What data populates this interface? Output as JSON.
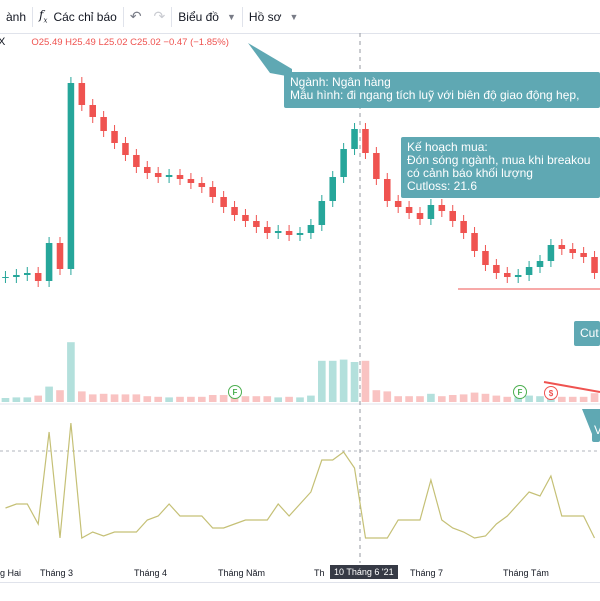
{
  "toolbar": {
    "nganh_label": "ành",
    "indicators_label": "Các chỉ báo",
    "chart_label": "Biểu đồ",
    "profile_label": "Hồ sơ"
  },
  "legend": {
    "close_glyph": "X",
    "open": "O25.49",
    "high": "H25.49",
    "low": "L25.02",
    "close": "C25.02",
    "change": "−0.47 (−1.85%)"
  },
  "callouts": {
    "sector_line1": "Ngành: Ngân hàng",
    "sector_line2": "Mẫu hình: đi ngang tích luỹ với biên độ giao động hẹp,",
    "plan_line1": "Kế hoạch mua:",
    "plan_line2": "Đón sóng ngành, mua khi breakou",
    "plan_line3": "có cảnh báo khối lượng",
    "plan_line4": "Cutloss: 21.6",
    "cut_label": "Cut",
    "v_label": "V"
  },
  "xaxis": {
    "labels": [
      "g Hai",
      "Tháng 3",
      "Tháng 4",
      "Tháng Năm",
      "Th",
      "Tháng 7",
      "Tháng Tám"
    ],
    "crosshair": "10 Tháng 6 '21"
  },
  "flags": [
    "F",
    "F",
    "$"
  ],
  "colors": {
    "up": "#26a69a",
    "down": "#ef5350",
    "osc": "#c5c076",
    "callout": "#5fa8b3"
  },
  "icons": [
    "fx-icon",
    "undo-icon",
    "redo-icon",
    "chevron-down-icon",
    "close-icon"
  ],
  "chart_data": {
    "type": "candlestick",
    "close_values_approx": [
      24.8,
      24.9,
      25.0,
      24.6,
      26.5,
      25.2,
      34.5,
      33.4,
      32.8,
      32.1,
      31.5,
      30.9,
      30.3,
      30.0,
      29.8,
      29.9,
      29.7,
      29.5,
      29.3,
      28.8,
      28.3,
      27.9,
      27.6,
      27.3,
      27.0,
      27.1,
      26.9,
      27.0,
      27.4,
      28.6,
      29.8,
      31.2,
      32.2,
      31.0,
      29.7,
      28.6,
      28.3,
      28.0,
      27.7,
      28.4,
      28.1,
      27.6,
      27.0,
      26.1,
      25.4,
      25.0,
      24.8,
      24.9,
      25.3,
      25.6,
      26.4,
      26.2,
      26.0,
      25.8,
      25.0
    ]
  }
}
